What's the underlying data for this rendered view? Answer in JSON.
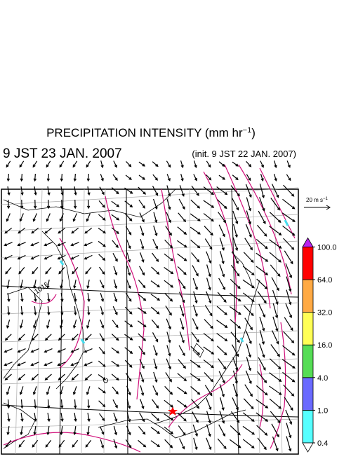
{
  "title": {
    "main": "PRECIPITATION INTENSITY (mm hr",
    "superscript": "−1",
    "close": ")"
  },
  "valid_time": "9 JST 23 JAN. 2007",
  "init_time": "(init. 9 JST 22 JAN. 2007)",
  "wind_scale": {
    "main": "20 m s",
    "superscript": "−1"
  },
  "contour_label": "1016",
  "colorbar": {
    "levels": [
      {
        "value": 0.4,
        "label": "0.4"
      },
      {
        "value": 1,
        "label": "1.0"
      },
      {
        "value": 4,
        "label": "4.0"
      },
      {
        "value": 16,
        "label": "16.0"
      },
      {
        "value": 32,
        "label": "32.0"
      },
      {
        "value": 64,
        "label": "64.0"
      },
      {
        "value": 100,
        "label": "100.0"
      }
    ],
    "colors": [
      "#55ffff",
      "#6a6aff",
      "#55dd55",
      "#ffff55",
      "#ffaa44",
      "#ff0000"
    ],
    "under_color": "#ffffff",
    "over_color": "#bb22ee"
  }
}
